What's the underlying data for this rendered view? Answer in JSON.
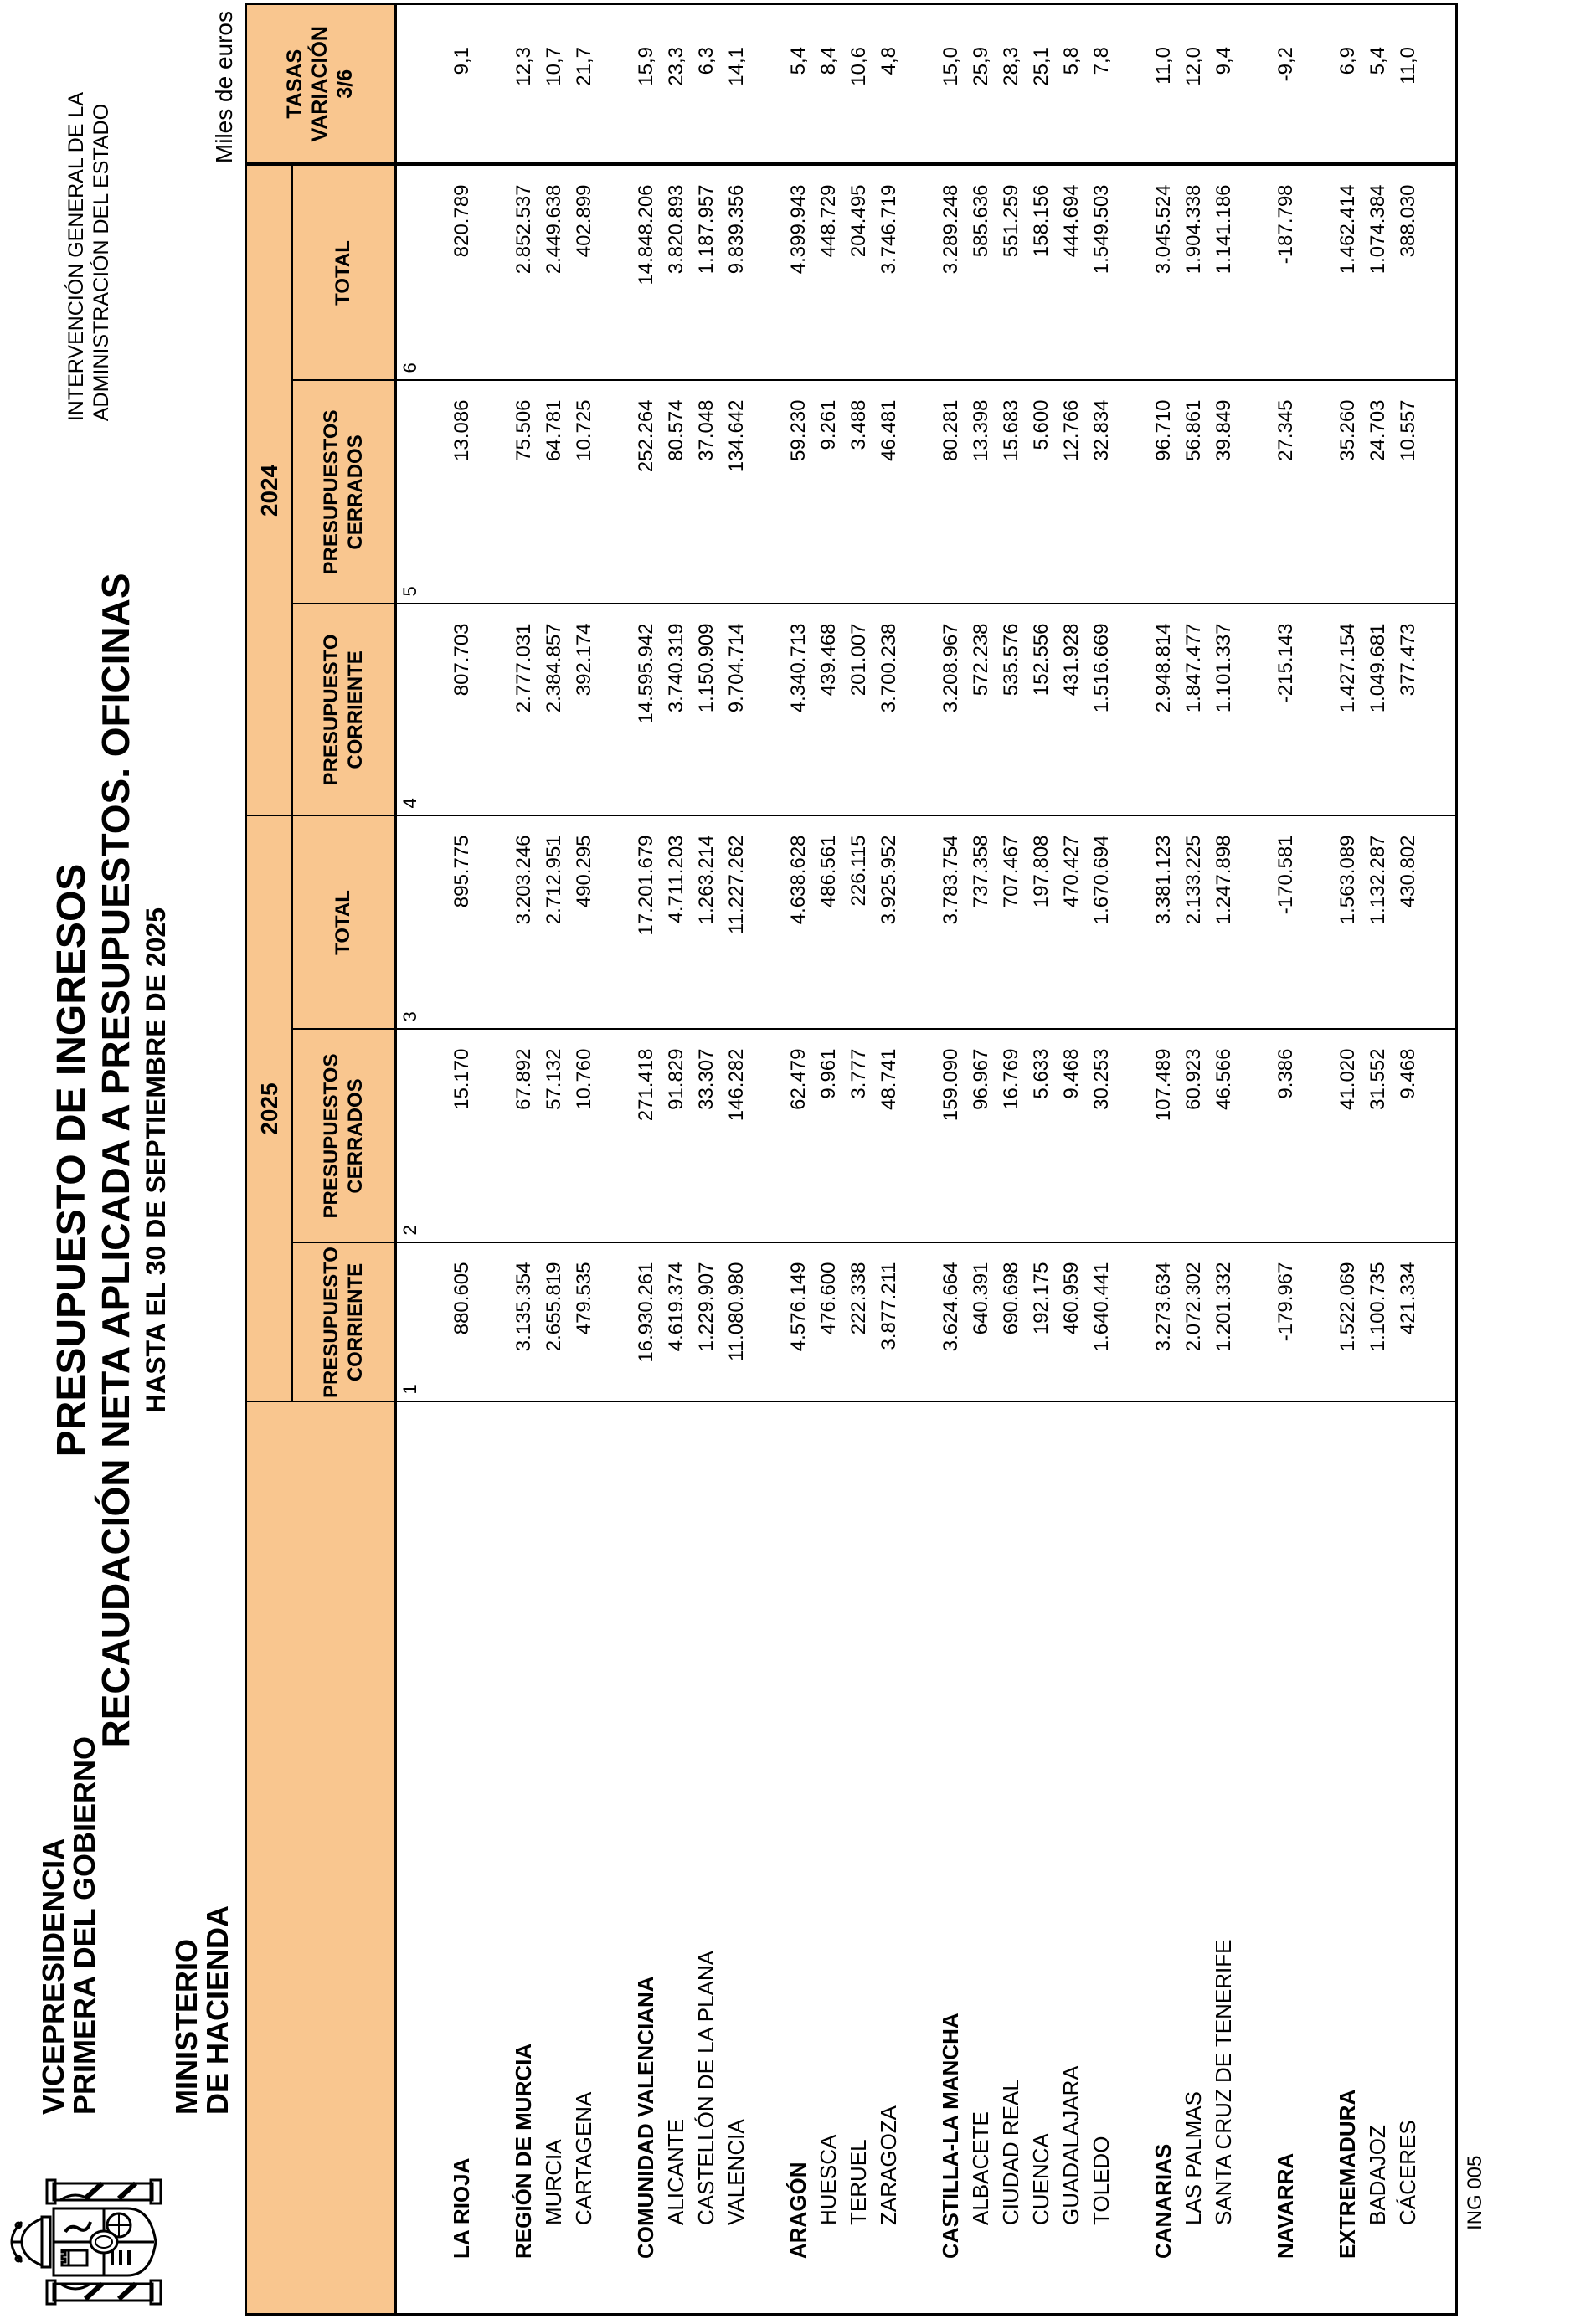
{
  "header": {
    "ministry_top": "VICEPRESIDENCIA\nPRIMERA DEL GOBIERNO",
    "ministry_bottom": "MINISTERIO\nDE HACIENDA",
    "igae": "INTERVENCIÓN GENERAL DE LA\nADMINISTRACIÓN DEL ESTADO"
  },
  "title": {
    "line1": "PRESUPUESTO DE INGRESOS",
    "line2": "RECAUDACIÓN NETA APLICADA A PRESUPUESTOS. OFICINAS",
    "line3": "HASTA EL 30 DE SEPTIEMBRE DE 2025"
  },
  "table": {
    "units": "Miles de euros",
    "year_groups": [
      "2025",
      "2024"
    ],
    "column_headers": [
      "PRESUPUESTO\nCORRIENTE",
      "PRESUPUESTOS\nCERRADOS",
      "TOTAL",
      "PRESUPUESTO\nCORRIENTE",
      "PRESUPUESTOS\nCERRADOS",
      "TOTAL"
    ],
    "tasas_header": "TASAS\nVARIACIÓN\n3/6",
    "column_numbers": [
      "1",
      "2",
      "3",
      "4",
      "5",
      "6"
    ],
    "rows": [
      {
        "label": "LA RIOJA",
        "bold": true,
        "values": [
          "880.605",
          "15.170",
          "895.775",
          "807.703",
          "13.086",
          "820.789"
        ],
        "tasa": "9,1"
      },
      {
        "spacer": true
      },
      {
        "label": "REGIÓN DE MURCIA",
        "bold": true,
        "values": [
          "3.135.354",
          "67.892",
          "3.203.246",
          "2.777.031",
          "75.506",
          "2.852.537"
        ],
        "tasa": "12,3"
      },
      {
        "label": "MURCIA",
        "bold": false,
        "values": [
          "2.655.819",
          "57.132",
          "2.712.951",
          "2.384.857",
          "64.781",
          "2.449.638"
        ],
        "tasa": "10,7"
      },
      {
        "label": "CARTAGENA",
        "bold": false,
        "values": [
          "479.535",
          "10.760",
          "490.295",
          "392.174",
          "10.725",
          "402.899"
        ],
        "tasa": "21,7"
      },
      {
        "spacer": true
      },
      {
        "label": "COMUNIDAD VALENCIANA",
        "bold": true,
        "values": [
          "16.930.261",
          "271.418",
          "17.201.679",
          "14.595.942",
          "252.264",
          "14.848.206"
        ],
        "tasa": "15,9"
      },
      {
        "label": "ALICANTE",
        "bold": false,
        "values": [
          "4.619.374",
          "91.829",
          "4.711.203",
          "3.740.319",
          "80.574",
          "3.820.893"
        ],
        "tasa": "23,3"
      },
      {
        "label": "CASTELLÓN DE LA PLANA",
        "bold": false,
        "values": [
          "1.229.907",
          "33.307",
          "1.263.214",
          "1.150.909",
          "37.048",
          "1.187.957"
        ],
        "tasa": "6,3"
      },
      {
        "label": "VALENCIA",
        "bold": false,
        "values": [
          "11.080.980",
          "146.282",
          "11.227.262",
          "9.704.714",
          "134.642",
          "9.839.356"
        ],
        "tasa": "14,1"
      },
      {
        "spacer": true
      },
      {
        "label": "ARAGÓN",
        "bold": true,
        "values": [
          "4.576.149",
          "62.479",
          "4.638.628",
          "4.340.713",
          "59.230",
          "4.399.943"
        ],
        "tasa": "5,4"
      },
      {
        "label": "HUESCA",
        "bold": false,
        "values": [
          "476.600",
          "9.961",
          "486.561",
          "439.468",
          "9.261",
          "448.729"
        ],
        "tasa": "8,4"
      },
      {
        "label": "TERUEL",
        "bold": false,
        "values": [
          "222.338",
          "3.777",
          "226.115",
          "201.007",
          "3.488",
          "204.495"
        ],
        "tasa": "10,6"
      },
      {
        "label": "ZARAGOZA",
        "bold": false,
        "values": [
          "3.877.211",
          "48.741",
          "3.925.952",
          "3.700.238",
          "46.481",
          "3.746.719"
        ],
        "tasa": "4,8"
      },
      {
        "spacer": true
      },
      {
        "label": "CASTILLA-LA MANCHA",
        "bold": true,
        "values": [
          "3.624.664",
          "159.090",
          "3.783.754",
          "3.208.967",
          "80.281",
          "3.289.248"
        ],
        "tasa": "15,0"
      },
      {
        "label": "ALBACETE",
        "bold": false,
        "values": [
          "640.391",
          "96.967",
          "737.358",
          "572.238",
          "13.398",
          "585.636"
        ],
        "tasa": "25,9"
      },
      {
        "label": "CIUDAD REAL",
        "bold": false,
        "values": [
          "690.698",
          "16.769",
          "707.467",
          "535.576",
          "15.683",
          "551.259"
        ],
        "tasa": "28,3"
      },
      {
        "label": "CUENCA",
        "bold": false,
        "values": [
          "192.175",
          "5.633",
          "197.808",
          "152.556",
          "5.600",
          "158.156"
        ],
        "tasa": "25,1"
      },
      {
        "label": "GUADALAJARA",
        "bold": false,
        "values": [
          "460.959",
          "9.468",
          "470.427",
          "431.928",
          "12.766",
          "444.694"
        ],
        "tasa": "5,8"
      },
      {
        "label": "TOLEDO",
        "bold": false,
        "values": [
          "1.640.441",
          "30.253",
          "1.670.694",
          "1.516.669",
          "32.834",
          "1.549.503"
        ],
        "tasa": "7,8"
      },
      {
        "spacer": true
      },
      {
        "label": "CANARIAS",
        "bold": true,
        "values": [
          "3.273.634",
          "107.489",
          "3.381.123",
          "2.948.814",
          "96.710",
          "3.045.524"
        ],
        "tasa": "11,0"
      },
      {
        "label": "LAS PALMAS",
        "bold": false,
        "values": [
          "2.072.302",
          "60.923",
          "2.133.225",
          "1.847.477",
          "56.861",
          "1.904.338"
        ],
        "tasa": "12,0"
      },
      {
        "label": "SANTA CRUZ DE TENERIFE",
        "bold": false,
        "values": [
          "1.201.332",
          "46.566",
          "1.247.898",
          "1.101.337",
          "39.849",
          "1.141.186"
        ],
        "tasa": "9,4"
      },
      {
        "spacer": true
      },
      {
        "label": "NAVARRA",
        "bold": true,
        "values": [
          "-179.967",
          "9.386",
          "-170.581",
          "-215.143",
          "27.345",
          "-187.798"
        ],
        "tasa": "-9,2"
      },
      {
        "spacer": true
      },
      {
        "label": "EXTREMADURA",
        "bold": true,
        "values": [
          "1.522.069",
          "41.020",
          "1.563.089",
          "1.427.154",
          "35.260",
          "1.462.414"
        ],
        "tasa": "6,9"
      },
      {
        "label": "BADAJOZ",
        "bold": false,
        "values": [
          "1.100.735",
          "31.552",
          "1.132.287",
          "1.049.681",
          "24.703",
          "1.074.384"
        ],
        "tasa": "5,4"
      },
      {
        "label": "CÁCERES",
        "bold": false,
        "values": [
          "421.334",
          "9.468",
          "430.802",
          "377.473",
          "10.557",
          "388.030"
        ],
        "tasa": "11,0"
      }
    ]
  },
  "footer": {
    "form_code": "ING 005"
  },
  "colors": {
    "header_fill": "#F9C68F",
    "border": "#000000"
  }
}
